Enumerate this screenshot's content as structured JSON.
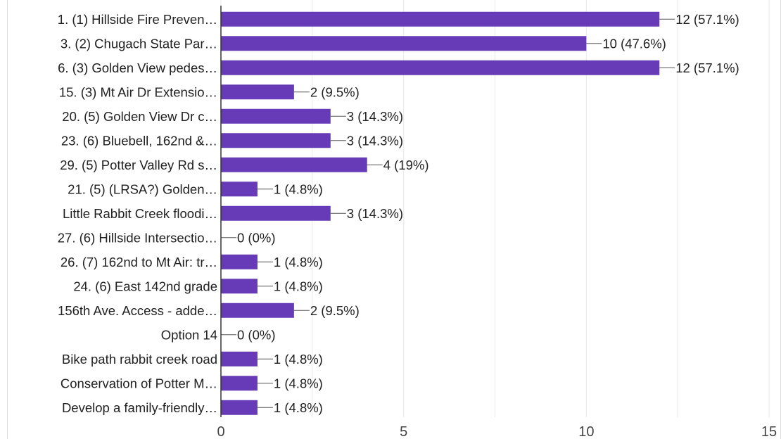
{
  "chart_data": {
    "type": "bar",
    "orientation": "horizontal",
    "categories": [
      "1. (1) Hillside Fire Preven…",
      "3. (2) Chugach State Par…",
      "6. (3) Golden View pedes…",
      "15. (3) Mt Air Dr Extensio…",
      "20. (5) Golden View Dr c…",
      "23. (6) Bluebell, 162nd &…",
      "29. (5) Potter Valley Rd s…",
      "21. (5) (LRSA?) Golden…",
      "Little Rabbit Creek floodi…",
      "27. (6) Hillside Intersectio…",
      "26. (7) 162nd to Mt Air: tr…",
      "24. (6) East 142nd grade",
      "156th Ave. Access - adde…",
      "Option 14",
      "Bike path rabbit creek road",
      "Conservation of Potter M…",
      "Develop a family-friendly…"
    ],
    "values": [
      12,
      10,
      12,
      2,
      3,
      3,
      4,
      1,
      3,
      0,
      1,
      1,
      2,
      0,
      1,
      1,
      1
    ],
    "data_labels": [
      "12 (57.1%)",
      "10 (47.6%)",
      "12 (57.1%)",
      "2 (9.5%)",
      "3 (14.3%)",
      "3 (14.3%)",
      "4 (19%)",
      "1 (4.8%)",
      "3 (14.3%)",
      "0 (0%)",
      "1 (4.8%)",
      "1 (4.8%)",
      "2 (9.5%)",
      "0 (0%)",
      "1 (4.8%)",
      "1 (4.8%)",
      "1 (4.8%)"
    ],
    "xlim": [
      0,
      15
    ],
    "x_ticks": [
      "0",
      "5",
      "10",
      "15"
    ],
    "grid": true,
    "bar_color": "#673ab7",
    "grid_color": "#e8e8e8",
    "axis_color": "#333333",
    "label_color": "#212121"
  }
}
